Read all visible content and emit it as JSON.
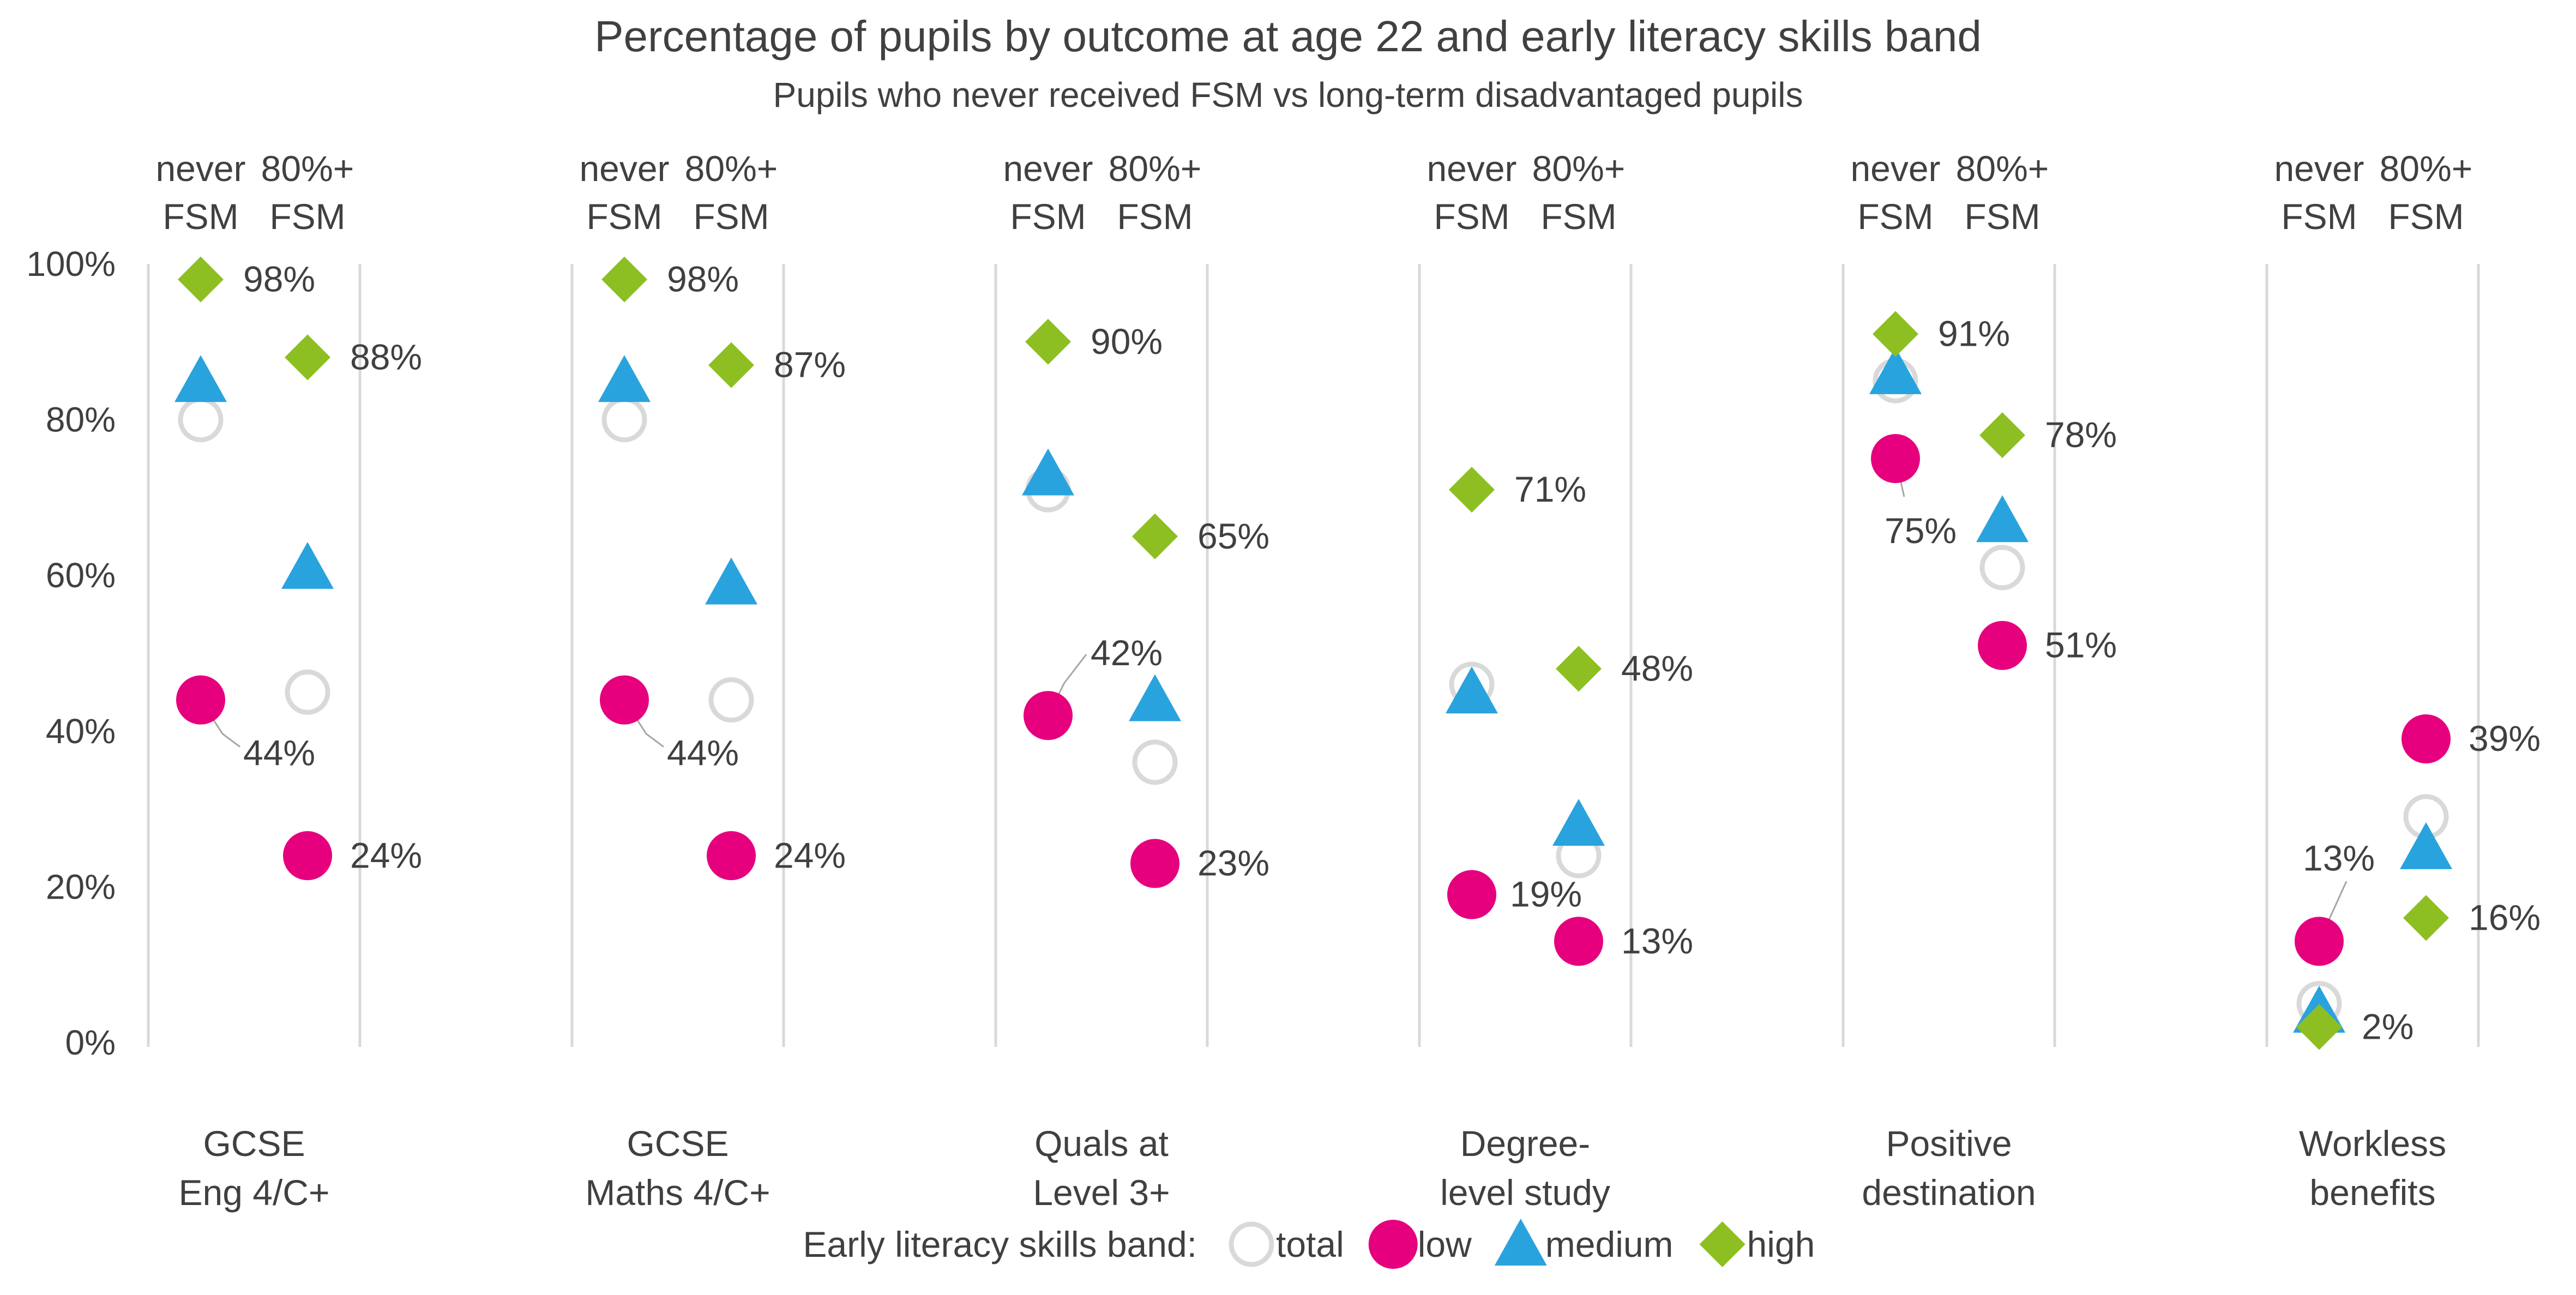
{
  "chart_data": {
    "type": "scatter",
    "title": "Percentage of pupils by outcome at age 22 and early literacy skills band",
    "subtitle": "Pupils who never received FSM vs long-term disadvantaged pupils",
    "ylim": [
      0,
      100
    ],
    "y_ticks": [
      "0%",
      "20%",
      "40%",
      "60%",
      "80%",
      "100%"
    ],
    "y_tick_values": [
      0,
      20,
      40,
      60,
      80,
      100
    ],
    "grid": "vertical separators only",
    "group_labels": [
      {
        "line1": "never",
        "line2": "FSM"
      },
      {
        "line1": "80%+",
        "line2": "FSM"
      }
    ],
    "categories": [
      {
        "line1": "GCSE",
        "line2": "Eng 4/C+"
      },
      {
        "line1": "GCSE",
        "line2": "Maths 4/C+"
      },
      {
        "line1": "Quals at",
        "line2": "Level 3+"
      },
      {
        "line1": "Degree-",
        "line2": "level study"
      },
      {
        "line1": "Positive",
        "line2": "destination"
      },
      {
        "line1": "Workless",
        "line2": "benefits"
      }
    ],
    "legend_title": "Early literacy skills band:",
    "legend_position": "bottom",
    "series": [
      {
        "name": "total",
        "marker": "open-circle",
        "color": "#d9d9d9",
        "never_fsm": [
          80,
          80,
          71,
          46,
          85,
          5
        ],
        "fsm_80": [
          45,
          44,
          36,
          24,
          61,
          29
        ]
      },
      {
        "name": "low",
        "marker": "circle",
        "color": "#e6007e",
        "never_fsm": [
          44,
          44,
          42,
          19,
          75,
          13
        ],
        "fsm_80": [
          24,
          24,
          23,
          13,
          51,
          39
        ]
      },
      {
        "name": "medium",
        "marker": "triangle",
        "color": "#29a3dd",
        "never_fsm": [
          85,
          85,
          73,
          45,
          86,
          4
        ],
        "fsm_80": [
          61,
          59,
          44,
          28,
          67,
          25
        ]
      },
      {
        "name": "high",
        "marker": "diamond",
        "color": "#8dbf22",
        "never_fsm": [
          98,
          98,
          90,
          71,
          91,
          2
        ],
        "fsm_80": [
          88,
          87,
          65,
          48,
          78,
          16
        ]
      }
    ],
    "data_labels": [
      {
        "text": "98%",
        "series": "high",
        "group": "never_fsm",
        "category": 0
      },
      {
        "text": "88%",
        "series": "high",
        "group": "fsm_80",
        "category": 0
      },
      {
        "text": "44%",
        "series": "low",
        "group": "never_fsm",
        "category": 0,
        "leader": true
      },
      {
        "text": "24%",
        "series": "low",
        "group": "fsm_80",
        "category": 0
      },
      {
        "text": "98%",
        "series": "high",
        "group": "never_fsm",
        "category": 1
      },
      {
        "text": "87%",
        "series": "high",
        "group": "fsm_80",
        "category": 1
      },
      {
        "text": "44%",
        "series": "low",
        "group": "never_fsm",
        "category": 1,
        "leader": true
      },
      {
        "text": "24%",
        "series": "low",
        "group": "fsm_80",
        "category": 1
      },
      {
        "text": "90%",
        "series": "high",
        "group": "never_fsm",
        "category": 2
      },
      {
        "text": "65%",
        "series": "high",
        "group": "fsm_80",
        "category": 2
      },
      {
        "text": "42%",
        "series": "low",
        "group": "never_fsm",
        "category": 2,
        "leader": true
      },
      {
        "text": "23%",
        "series": "low",
        "group": "fsm_80",
        "category": 2
      },
      {
        "text": "71%",
        "series": "high",
        "group": "never_fsm",
        "category": 3
      },
      {
        "text": "48%",
        "series": "high",
        "group": "fsm_80",
        "category": 3
      },
      {
        "text": "19%",
        "series": "low",
        "group": "never_fsm",
        "category": 3
      },
      {
        "text": "13%",
        "series": "low",
        "group": "fsm_80",
        "category": 3
      },
      {
        "text": "91%",
        "series": "high",
        "group": "never_fsm",
        "category": 4
      },
      {
        "text": "78%",
        "series": "high",
        "group": "fsm_80",
        "category": 4
      },
      {
        "text": "75%",
        "series": "low",
        "group": "never_fsm",
        "category": 4,
        "leader": true
      },
      {
        "text": "51%",
        "series": "low",
        "group": "fsm_80",
        "category": 4
      },
      {
        "text": "13%",
        "series": "low",
        "group": "never_fsm",
        "category": 5,
        "leader": true
      },
      {
        "text": "2%",
        "series": "high",
        "group": "never_fsm",
        "category": 5
      },
      {
        "text": "39%",
        "series": "low",
        "group": "fsm_80",
        "category": 5
      },
      {
        "text": "16%",
        "series": "high",
        "group": "fsm_80",
        "category": 5
      }
    ]
  }
}
